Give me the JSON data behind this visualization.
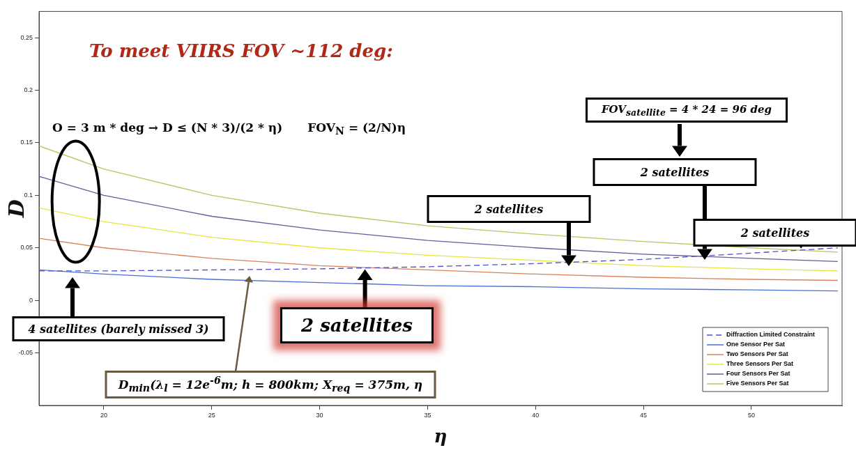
{
  "chart_data": {
    "type": "line",
    "title": "To meet VIIRS FOV ~112 deg:",
    "xlabel": "η",
    "ylabel": "D",
    "xlim": [
      17,
      54.2
    ],
    "xticks": [
      20,
      25,
      30,
      35,
      40,
      45,
      50
    ],
    "ylim": [
      -0.1,
      0.275
    ],
    "yticks": [
      -0.05,
      0,
      0.05,
      0.1,
      0.15,
      0.2,
      0.25
    ],
    "grid": false,
    "legend": "bottom right",
    "marker": "none",
    "series": [
      {
        "name": "Diffraction Limited Constraint",
        "color": "#5050c8",
        "line_style": "dashed",
        "x": [
          17,
          20,
          25,
          30,
          35,
          40,
          45,
          50,
          54
        ],
        "values": [
          0.028,
          0.028,
          0.029,
          0.03,
          0.032,
          0.035,
          0.039,
          0.045,
          0.05
        ]
      },
      {
        "name": "One Sensor Per Sat",
        "color": "#4a6fd8",
        "x": [
          17,
          20,
          25,
          30,
          35,
          40,
          45,
          50,
          54
        ],
        "values": [
          0.029,
          0.025,
          0.02,
          0.017,
          0.014,
          0.013,
          0.011,
          0.01,
          0.009
        ]
      },
      {
        "name": "Two Sensors Per Sat",
        "color": "#d9825a",
        "x": [
          17,
          20,
          25,
          30,
          35,
          40,
          45,
          50,
          54
        ],
        "values": [
          0.059,
          0.05,
          0.04,
          0.033,
          0.029,
          0.025,
          0.022,
          0.02,
          0.019
        ]
      },
      {
        "name": "Three Sensors Per Sat",
        "color": "#e6e63c",
        "x": [
          17,
          20,
          25,
          30,
          35,
          40,
          45,
          50,
          54
        ],
        "values": [
          0.088,
          0.075,
          0.06,
          0.05,
          0.043,
          0.038,
          0.033,
          0.03,
          0.028
        ]
      },
      {
        "name": "Four Sensors Per Sat",
        "color": "#6a5a9a",
        "x": [
          17,
          20,
          25,
          30,
          35,
          40,
          45,
          50,
          54
        ],
        "values": [
          0.118,
          0.1,
          0.08,
          0.067,
          0.057,
          0.05,
          0.044,
          0.04,
          0.037
        ]
      },
      {
        "name": "Five Sensors Per Sat",
        "color": "#b4c864",
        "x": [
          17,
          20,
          25,
          30,
          35,
          40,
          45,
          50,
          54
        ],
        "values": [
          0.147,
          0.125,
          0.1,
          0.083,
          0.071,
          0.063,
          0.056,
          0.05,
          0.046
        ]
      }
    ],
    "annotations": [
      "O = 3 m * deg → D ≤ (N * 3)/(2 * η)",
      "FOV$_{N}$ = (2/N)η",
      "FOV$_{satellite}$ = 4 * 24 = 96 deg",
      "2 satellites",
      "2 satellites",
      {
        "text": "2 satellites",
        "x": 52.3,
        "y": 0.048
      },
      {
        "text": "2 satellites",
        "x": 32.1,
        "y": 0.031
      },
      "4 satellites (barely missed 3)",
      "D$_{min}$(λ$_{l}$ = 12e$^{-6}$m; h = 800km; X$_{req}$ = 375m, η"
    ]
  }
}
